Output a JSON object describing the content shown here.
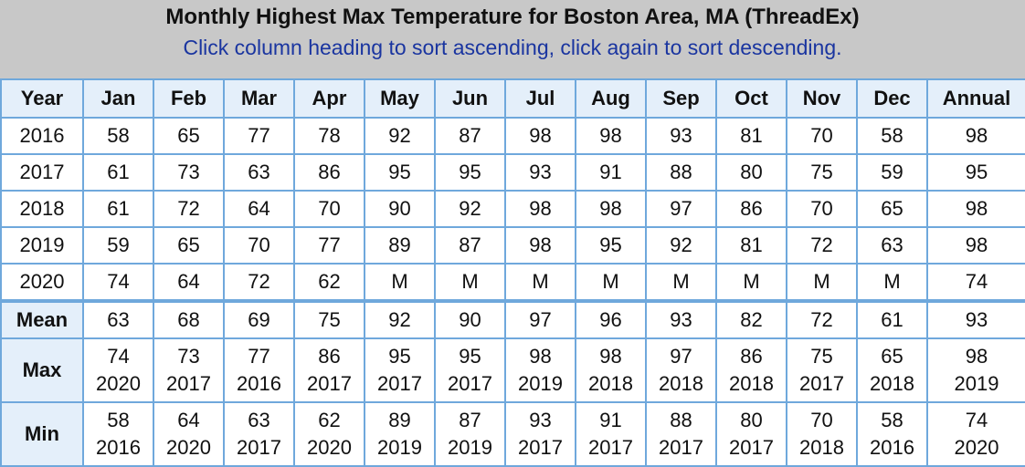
{
  "header": {
    "title": "Monthly Highest Max Temperature for Boston Area, MA (ThreadEx)",
    "subtitle": "Click column heading to sort ascending, click again to sort descending."
  },
  "columns": [
    "Year",
    "Jan",
    "Feb",
    "Mar",
    "Apr",
    "May",
    "Jun",
    "Jul",
    "Aug",
    "Sep",
    "Oct",
    "Nov",
    "Dec",
    "Annual"
  ],
  "rows": [
    {
      "year": "2016",
      "values": [
        "58",
        "65",
        "77",
        "78",
        "92",
        "87",
        "98",
        "98",
        "93",
        "81",
        "70",
        "58",
        "98"
      ]
    },
    {
      "year": "2017",
      "values": [
        "61",
        "73",
        "63",
        "86",
        "95",
        "95",
        "93",
        "91",
        "88",
        "80",
        "75",
        "59",
        "95"
      ]
    },
    {
      "year": "2018",
      "values": [
        "61",
        "72",
        "64",
        "70",
        "90",
        "92",
        "98",
        "98",
        "97",
        "86",
        "70",
        "65",
        "98"
      ]
    },
    {
      "year": "2019",
      "values": [
        "59",
        "65",
        "70",
        "77",
        "89",
        "87",
        "98",
        "95",
        "92",
        "81",
        "72",
        "63",
        "98"
      ]
    },
    {
      "year": "2020",
      "values": [
        "74",
        "64",
        "72",
        "62",
        "M",
        "M",
        "M",
        "M",
        "M",
        "M",
        "M",
        "M",
        "74"
      ]
    }
  ],
  "mean": {
    "label": "Mean",
    "values": [
      "63",
      "68",
      "69",
      "75",
      "92",
      "90",
      "97",
      "96",
      "93",
      "82",
      "72",
      "61",
      "93"
    ]
  },
  "max": {
    "label": "Max",
    "values": [
      "74",
      "73",
      "77",
      "86",
      "95",
      "95",
      "98",
      "98",
      "97",
      "86",
      "75",
      "65",
      "98"
    ],
    "years": [
      "2020",
      "2017",
      "2016",
      "2017",
      "2017",
      "2017",
      "2019",
      "2018",
      "2018",
      "2018",
      "2017",
      "2018",
      "2019"
    ]
  },
  "min": {
    "label": "Min",
    "values": [
      "58",
      "64",
      "63",
      "62",
      "89",
      "87",
      "93",
      "91",
      "88",
      "80",
      "70",
      "58",
      "74"
    ],
    "years": [
      "2016",
      "2020",
      "2017",
      "2020",
      "2019",
      "2019",
      "2017",
      "2017",
      "2017",
      "2017",
      "2018",
      "2016",
      "2020"
    ]
  },
  "colors": {
    "header_bg": "#c8c8c8",
    "subtitle": "#1a35a0",
    "grid": "#6fa8dc",
    "heading_bg": "#e4effa"
  }
}
